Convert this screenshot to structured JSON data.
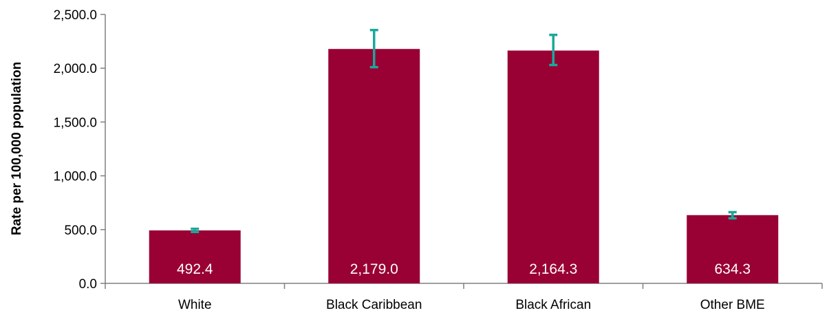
{
  "chart_data": {
    "type": "bar",
    "title": "",
    "xlabel": "",
    "ylabel": "Rate per 100,000 population",
    "categories": [
      "White",
      "Black Caribbean",
      "Black African",
      "Other BME"
    ],
    "values": [
      492.4,
      2179.0,
      2164.3,
      634.3
    ],
    "value_labels": [
      "492.4",
      "2,179.0",
      "2,164.3",
      "634.3"
    ],
    "error_bars": [
      {
        "low": 478,
        "high": 507
      },
      {
        "low": 2010,
        "high": 2355
      },
      {
        "low": 2030,
        "high": 2310
      },
      {
        "low": 605,
        "high": 662
      }
    ],
    "ylim": [
      0,
      2500
    ],
    "yticks": [
      0,
      500,
      1000,
      1500,
      2000,
      2500
    ],
    "ytick_labels": [
      "0.0",
      "500.0",
      "1,000.0",
      "1,500.0",
      "2,000.0",
      "2,500.0"
    ],
    "grid": false,
    "legend": "none",
    "colors": {
      "bar": "#990033",
      "error_bar": "#1aa89a",
      "axis": "#7f7f7f",
      "data_label": "#ffffff"
    }
  }
}
